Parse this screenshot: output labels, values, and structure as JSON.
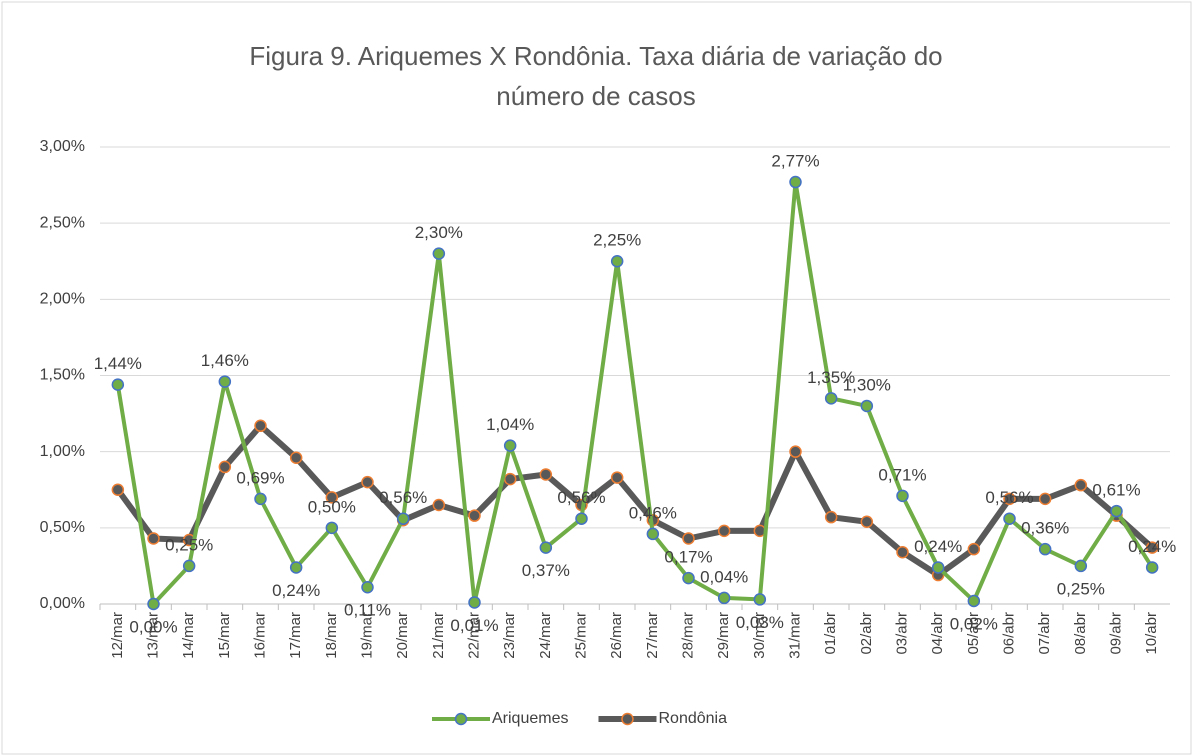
{
  "chart_data": {
    "type": "line",
    "title": "Figura 9. Ariquemes X Rondônia. Taxa diária de variação do número de casos",
    "categories": [
      "12/mar",
      "13/mar",
      "14/mar",
      "15/mar",
      "16/mar",
      "17/mar",
      "18/mar",
      "19/mar",
      "20/mar",
      "21/mar",
      "22/mar",
      "23/mar",
      "24/mar",
      "25/mar",
      "26/mar",
      "27/mar",
      "28/mar",
      "29/mar",
      "30/mar",
      "31/mar",
      "01/abr",
      "02/abr",
      "03/abr",
      "04/abr",
      "05/abr",
      "06/abr",
      "07/abr",
      "08/abr",
      "09/abr",
      "10/abr"
    ],
    "series": [
      {
        "name": "Ariquemes",
        "color": "#70ad47",
        "marker_edge_color": "#4472c4",
        "values": [
          1.44,
          0.0,
          0.25,
          1.46,
          0.69,
          0.24,
          0.5,
          0.11,
          0.56,
          2.3,
          0.01,
          1.04,
          0.37,
          0.56,
          2.25,
          0.46,
          0.17,
          0.04,
          0.03,
          2.77,
          1.35,
          1.3,
          0.71,
          0.24,
          0.02,
          0.56,
          0.36,
          0.25,
          0.61,
          0.24
        ],
        "value_labels": [
          "1,44%",
          "0,00%",
          "0,25%",
          "1,46%",
          "0,69%",
          "0,24%",
          "0,50%",
          "0,11%",
          "0,56%",
          "2,30%",
          "0,01%",
          "1,04%",
          "0,37%",
          "0,56%",
          "2,25%",
          "0,46%",
          "0,17%",
          "0,04%",
          "0,03%",
          "2,77%",
          "1,35%",
          "1,30%",
          "0,71%",
          "0,24%",
          "0,02%",
          "0,56%",
          "0,36%",
          "0,25%",
          "0,61%",
          "0,24%"
        ]
      },
      {
        "name": "Rondônia",
        "color": "#595959",
        "marker_edge_color": "#ed7d31",
        "values": [
          0.75,
          0.43,
          0.42,
          0.9,
          1.17,
          0.96,
          0.7,
          0.8,
          0.55,
          0.65,
          0.58,
          0.82,
          0.85,
          0.65,
          0.83,
          0.55,
          0.43,
          0.48,
          0.48,
          1.0,
          0.57,
          0.54,
          0.34,
          0.19,
          0.36,
          0.69,
          0.69,
          0.78,
          0.58,
          0.37
        ]
      }
    ],
    "ylim": [
      0,
      3
    ],
    "yticks": [
      {
        "value": 0,
        "label": "0,00%"
      },
      {
        "value": 0.5,
        "label": "0,50%"
      },
      {
        "value": 1,
        "label": "1,00%"
      },
      {
        "value": 1.5,
        "label": "1,50%"
      },
      {
        "value": 2,
        "label": "2,00%"
      },
      {
        "value": 2.5,
        "label": "2,50%"
      },
      {
        "value": 3,
        "label": "3,00%"
      }
    ],
    "grid": true,
    "legend": "bottom"
  }
}
